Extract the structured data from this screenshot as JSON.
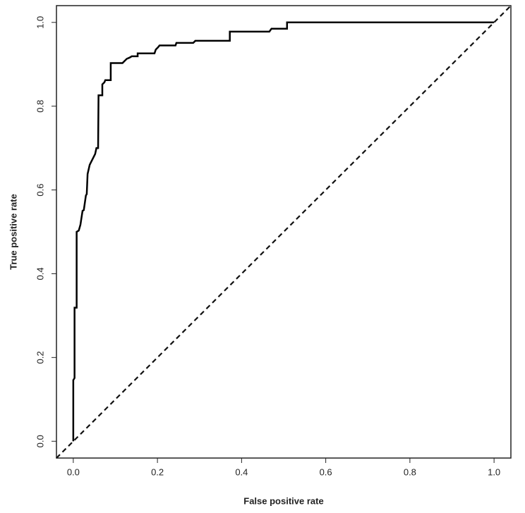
{
  "chart_data": {
    "type": "line",
    "xlabel": "False positive rate",
    "ylabel": "True positive rate",
    "x": [
      0,
      0,
      0.003,
      0.003,
      0.008,
      0.008,
      0.013,
      0.017,
      0.022,
      0.025,
      0.03,
      0.032,
      0.034,
      0.039,
      0.042,
      0.047,
      0.052,
      0.055,
      0.059,
      0.06,
      0.069,
      0.069,
      0.074,
      0.076,
      0.089,
      0.089,
      0.117,
      0.122,
      0.127,
      0.134,
      0.139,
      0.153,
      0.153,
      0.193,
      0.196,
      0.201,
      0.205,
      0.243,
      0.245,
      0.285,
      0.29,
      0.372,
      0.372,
      0.466,
      0.471,
      0.508,
      0.508,
      1
    ],
    "series": [
      {
        "color": "#000000",
        "values": [
          0,
          0.146,
          0.151,
          0.319,
          0.319,
          0.5,
          0.503,
          0.517,
          0.55,
          0.552,
          0.587,
          0.59,
          0.638,
          0.66,
          0.666,
          0.676,
          0.686,
          0.7,
          0.7,
          0.826,
          0.826,
          0.852,
          0.857,
          0.862,
          0.862,
          0.903,
          0.903,
          0.908,
          0.913,
          0.916,
          0.919,
          0.919,
          0.926,
          0.926,
          0.935,
          0.94,
          0.945,
          0.945,
          0.951,
          0.951,
          0.956,
          0.956,
          0.978,
          0.978,
          0.985,
          0.985,
          1,
          1
        ]
      }
    ],
    "xlim": [
      -0.04,
      1.04
    ],
    "ylim": [
      -0.04,
      1.04
    ],
    "xticks": [
      {
        "value": 0,
        "label": "0.0"
      },
      0.2,
      0.4,
      0.6,
      0.8,
      {
        "value": 1,
        "label": "1.0"
      }
    ],
    "yticks": [
      {
        "value": 0,
        "label": "0.0"
      },
      0.2,
      0.4,
      0.6,
      0.8,
      {
        "value": 1,
        "label": "1.0"
      }
    ],
    "grid": false
  }
}
